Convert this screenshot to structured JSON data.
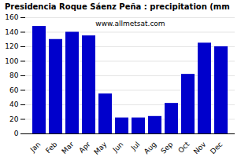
{
  "chart_data": {
    "type": "bar",
    "title": "Presidencia Roque Sáenz Peña : precipitation (mm",
    "categories": [
      "Jan",
      "Feb",
      "Mar",
      "Apr",
      "May",
      "Jun",
      "Jul",
      "Aug",
      "Sep",
      "Oct",
      "Nov",
      "Dec"
    ],
    "values": [
      148,
      130,
      140,
      135,
      55,
      22,
      22,
      24,
      42,
      82,
      125,
      120
    ],
    "color": "#0000cc",
    "ylim": [
      0,
      160
    ],
    "yticks": [
      0,
      20,
      40,
      60,
      80,
      100,
      120,
      140,
      160
    ],
    "grid": true,
    "annotation": "www.allmetsat.com"
  }
}
